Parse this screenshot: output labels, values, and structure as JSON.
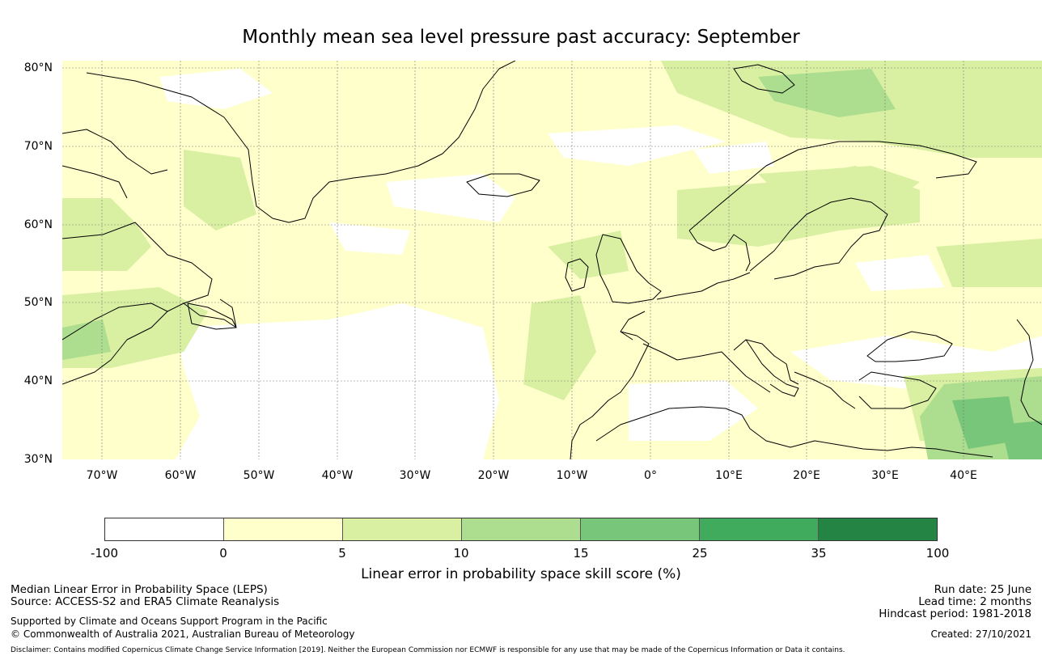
{
  "title": "Monthly mean sea level pressure past accuracy: September",
  "map": {
    "lat_labels": [
      "80°N",
      "70°N",
      "60°N",
      "50°N",
      "40°N",
      "30°N"
    ],
    "lon_labels": [
      "70°W",
      "60°W",
      "50°W",
      "40°W",
      "30°W",
      "20°W",
      "10°W",
      "0°",
      "10°E",
      "20°E",
      "30°E",
      "40°E"
    ],
    "extent": {
      "lon_min": -75,
      "lon_max": 50,
      "lat_min": 30,
      "lat_max": 81
    },
    "coastline_color": "#000000"
  },
  "colorbar": {
    "ticks": [
      "-100",
      "0",
      "5",
      "10",
      "15",
      "25",
      "35",
      "100"
    ],
    "colors": [
      "#ffffff",
      "#ffffcc",
      "#d9f0a3",
      "#addd8e",
      "#78c679",
      "#41ab5d",
      "#238443"
    ],
    "label": "Linear error in probability space skill score (%)"
  },
  "footer": {
    "line1": "Median Linear Error in Probability Space (LEPS)",
    "line2": "Source: ACCESS-S2 and ERA5 Climate Reanalysis",
    "line3": "Supported by Climate and Oceans Support Program in the Pacific",
    "line4": "© Commonwealth of Australia 2021, Australian Bureau of Meteorology",
    "run_date": "Run date: 25 June",
    "lead_time": "Lead time: 2 months",
    "hindcast": "Hindcast period: 1981-2018",
    "created": "Created: 27/10/2021",
    "disclaimer": "Disclaimer: Contains modified Copernicus Climate Change Service Information [2019]. Neither the European Commission nor ECMWF is responsible for any use that may be made of the Copernicus Information or Data it contains."
  }
}
